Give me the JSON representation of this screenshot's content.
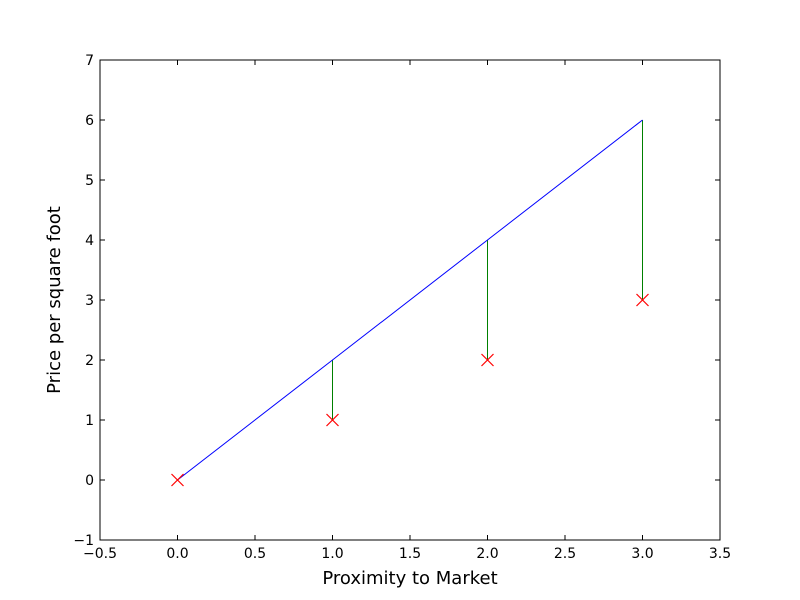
{
  "chart_data": {
    "type": "line",
    "title": "",
    "xlabel": "Proximity to Market",
    "ylabel": "Price per square foot",
    "xlim": [
      -0.5,
      3.5
    ],
    "ylim": [
      -1,
      7
    ],
    "x_ticks": [
      -0.5,
      0.0,
      0.5,
      1.0,
      1.5,
      2.0,
      2.5,
      3.0,
      3.5
    ],
    "x_tick_labels": [
      "−0.5",
      "0.0",
      "0.5",
      "1.0",
      "1.5",
      "2.0",
      "2.5",
      "3.0",
      "3.5"
    ],
    "y_ticks": [
      -1,
      0,
      1,
      2,
      3,
      4,
      5,
      6,
      7
    ],
    "y_tick_labels": [
      "−1",
      "0",
      "1",
      "2",
      "3",
      "4",
      "5",
      "6",
      "7"
    ],
    "grid": false,
    "series": [
      {
        "kind": "line",
        "x": [
          0,
          1,
          2,
          3
        ],
        "y": [
          0,
          2,
          4,
          6
        ],
        "color": "#0000ff"
      },
      {
        "kind": "scatter",
        "marker": "x",
        "x": [
          0,
          1,
          2,
          3
        ],
        "y": [
          0,
          1,
          2,
          3
        ],
        "color": "#ff0000"
      },
      {
        "kind": "residuals",
        "x": [
          1,
          2,
          3
        ],
        "y_from": [
          2,
          4,
          6
        ],
        "y_to": [
          1,
          2,
          3
        ],
        "color": "#008000"
      }
    ]
  }
}
